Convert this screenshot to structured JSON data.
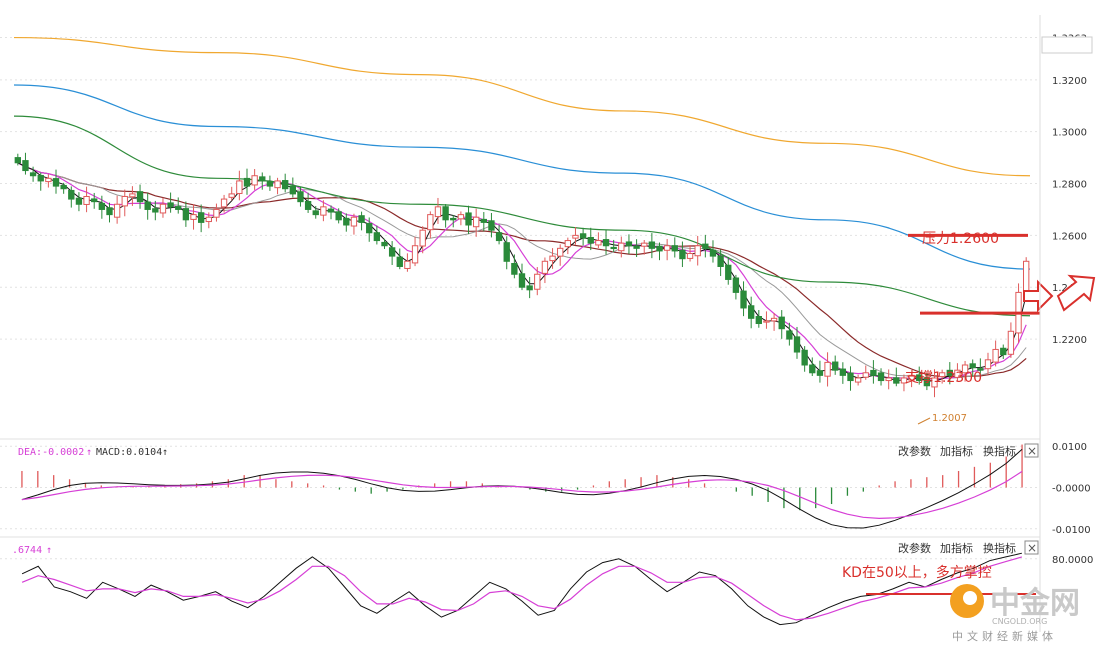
{
  "colors": {
    "up": "#e05a5a",
    "down": "#2a8a3a",
    "ma_black": "#111111",
    "ma_magenta": "#d63fd6",
    "ma_gray": "#999999",
    "ma_brown": "#8b2a2a",
    "ma_green": "#2e8b3a",
    "ma_blue": "#2a8fd6",
    "ma_orange": "#f0a830",
    "annotation": "#d9302c",
    "grid": "#e2e2e2"
  },
  "toolbar": {
    "change_params": "改参数",
    "add_indicator": "加指标",
    "switch_indicator": "换指标",
    "close": "×"
  },
  "annotations": {
    "resistance": "压力1.2600",
    "support": "支撑1.2300",
    "low_price": "1.2007",
    "kd_note": "KD在50以上，多方掌控"
  },
  "watermark": {
    "brand": "中金网",
    "domain": "CNGOLD.ORG",
    "tagline": "中文财经新媒体"
  },
  "chart_data": [
    {
      "type": "candlestick",
      "panel": "price",
      "ylim": [
        1.183,
        1.345
      ],
      "yticks": [
        "1.3363",
        "1.3200",
        "1.3000",
        "1.2800",
        "1.2600",
        "1.2400",
        "1.2200"
      ],
      "yticks_values": [
        1.3363,
        1.32,
        1.3,
        1.28,
        1.26,
        1.24,
        1.22
      ],
      "closes": [
        1.288,
        1.285,
        1.283,
        1.281,
        1.282,
        1.279,
        1.278,
        1.274,
        1.272,
        1.275,
        1.273,
        1.27,
        1.268,
        1.272,
        1.275,
        1.276,
        1.273,
        1.27,
        1.269,
        1.272,
        1.271,
        1.27,
        1.266,
        1.268,
        1.265,
        1.267,
        1.27,
        1.274,
        1.276,
        1.281,
        1.279,
        1.283,
        1.281,
        1.279,
        1.281,
        1.278,
        1.276,
        1.273,
        1.27,
        1.268,
        1.271,
        1.269,
        1.266,
        1.264,
        1.267,
        1.265,
        1.261,
        1.258,
        1.256,
        1.252,
        1.248,
        1.25,
        1.256,
        1.262,
        1.268,
        1.271,
        1.266,
        1.266,
        1.268,
        1.264,
        1.267,
        1.265,
        1.262,
        1.258,
        1.25,
        1.245,
        1.24,
        1.239,
        1.245,
        1.25,
        1.252,
        1.255,
        1.258,
        1.26,
        1.259,
        1.257,
        1.258,
        1.256,
        1.255,
        1.257,
        1.256,
        1.255,
        1.257,
        1.255,
        1.254,
        1.256,
        1.254,
        1.251,
        1.253,
        1.256,
        1.255,
        1.252,
        1.248,
        1.243,
        1.238,
        1.232,
        1.228,
        1.226,
        1.227,
        1.228,
        1.224,
        1.22,
        1.215,
        1.21,
        1.207,
        1.206,
        1.211,
        1.208,
        1.206,
        1.204,
        1.205,
        1.207,
        1.206,
        1.204,
        1.205,
        1.203,
        1.205,
        1.206,
        1.204,
        1.202,
        1.205,
        1.207,
        1.206,
        1.208,
        1.21,
        1.209,
        1.208,
        1.212,
        1.216,
        1.214,
        1.223,
        1.238,
        1.25
      ],
      "low_marker": 1.2007,
      "resistance": 1.26,
      "support": 1.23,
      "ma_series": [
        {
          "color_key": "ma_orange",
          "values": [
            1.3363,
            1.3305,
            1.322,
            1.308,
            1.2955,
            1.283
          ]
        },
        {
          "color_key": "ma_blue",
          "values": [
            1.318,
            1.302,
            1.294,
            1.284,
            1.266,
            1.247
          ]
        },
        {
          "color_key": "ma_green",
          "values": [
            1.306,
            1.282,
            1.272,
            1.262,
            1.242,
            1.229
          ]
        }
      ]
    },
    {
      "type": "bar",
      "panel": "macd",
      "readout": {
        "dea": "DEA:-0.0002",
        "macd": "MACD:0.0104"
      },
      "ylim": [
        -0.0115,
        0.0115
      ],
      "yticks": [
        "0.0100",
        "-0.0000",
        "-0.0100"
      ],
      "yticks_values": [
        0.01,
        0.0,
        -0.01
      ],
      "values": [
        0.004,
        0.004,
        0.003,
        0.002,
        0.001,
        0.0005,
        0.0003,
        0.0002,
        0.0003,
        0.0005,
        0.0008,
        0.001,
        0.0015,
        0.002,
        0.003,
        0.003,
        0.002,
        0.0015,
        0.001,
        0.0005,
        -0.0005,
        -0.001,
        -0.0015,
        -0.001,
        -0.0005,
        0.0005,
        0.001,
        0.0015,
        0.0015,
        0.001,
        0.0005,
        0.0,
        -0.0005,
        -0.001,
        -0.001,
        -0.0005,
        0.0005,
        0.0015,
        0.002,
        0.0025,
        0.003,
        0.0025,
        0.002,
        0.001,
        0.0,
        -0.001,
        -0.002,
        -0.0035,
        -0.005,
        -0.0055,
        -0.005,
        -0.004,
        -0.002,
        -0.001,
        0.0005,
        0.0015,
        0.002,
        0.0025,
        0.003,
        0.004,
        0.005,
        0.006,
        0.0075,
        0.0104
      ]
    },
    {
      "type": "line",
      "panel": "kd",
      "readout": {
        "k": ".6744"
      },
      "ylim": [
        0,
        100
      ],
      "yticks": [
        "80.0000"
      ],
      "yticks_values": [
        80
      ],
      "k_values": [
        64,
        72,
        50,
        45,
        38,
        55,
        48,
        40,
        52,
        45,
        36,
        40,
        45,
        35,
        28,
        40,
        55,
        70,
        82,
        70,
        50,
        30,
        22,
        34,
        45,
        30,
        18,
        25,
        40,
        55,
        48,
        35,
        20,
        25,
        48,
        66,
        76,
        80,
        72,
        58,
        45,
        55,
        66,
        62,
        48,
        30,
        18,
        10,
        12,
        20,
        28,
        35,
        40,
        42,
        48,
        55,
        50,
        58,
        65,
        70,
        78,
        82,
        86
      ],
      "d_values": [
        55,
        62,
        58,
        52,
        46,
        48,
        48,
        44,
        48,
        46,
        40,
        40,
        42,
        38,
        33,
        37,
        46,
        58,
        72,
        72,
        62,
        45,
        32,
        32,
        38,
        34,
        26,
        25,
        32,
        44,
        46,
        40,
        30,
        27,
        37,
        52,
        64,
        72,
        72,
        65,
        55,
        55,
        60,
        61,
        54,
        42,
        30,
        20,
        15,
        17,
        22,
        28,
        34,
        38,
        43,
        49,
        50,
        54,
        60,
        65,
        72,
        77,
        82
      ]
    }
  ]
}
